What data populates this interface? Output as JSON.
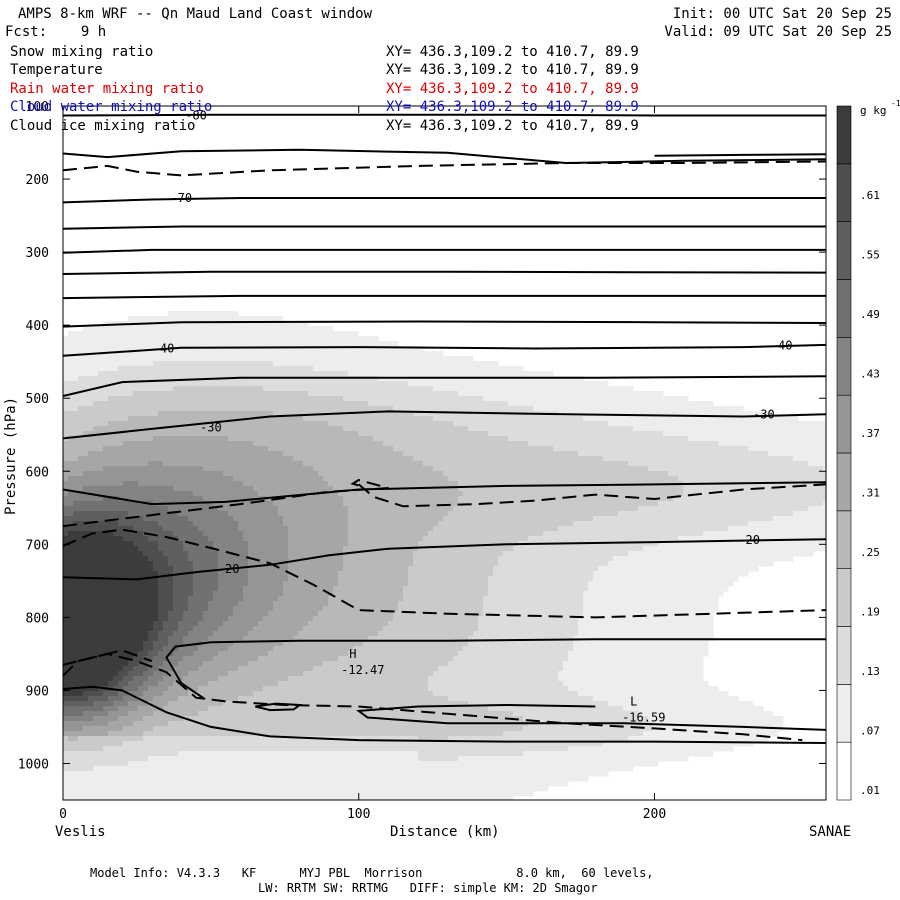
{
  "header": {
    "title": "AMPS 8-km WRF -- Qn Maud Land Coast window",
    "init": "Init: 00 UTC Sat 20 Sep 25",
    "fcst": "Fcst:    9 h",
    "valid": "Valid: 09 UTC Sat 20 Sep 25"
  },
  "fields": [
    {
      "label": "Snow mixing ratio",
      "xy": "XY= 436.3,109.2 to 410.7, 89.9",
      "color": "#000000"
    },
    {
      "label": "Temperature",
      "xy": "XY= 436.3,109.2 to 410.7, 89.9",
      "color": "#000000"
    },
    {
      "label": "Rain water mixing ratio",
      "xy": "XY= 436.3,109.2 to 410.7, 89.9",
      "color": "#e00000"
    },
    {
      "label": "Cloud water mixing ratio",
      "xy": "XY= 436.3,109.2 to 410.7, 89.9",
      "color": "#1010c0"
    },
    {
      "label": "Cloud ice mixing ratio",
      "xy": "XY= 436.3,109.2 to 410.7, 89.9",
      "color": "#000000"
    }
  ],
  "footer": {
    "line1": "Model Info: V4.3.3   KF      MYJ PBL  Morrison             8.0 km,  60 levels,",
    "line2": "LW: RRTM SW: RRTMG   DIFF: simple KM: 2D Smagor"
  },
  "chart_data": {
    "type": "cross-section contour",
    "ylabel": "Pressure (hPa)",
    "xlabel": "Distance (km)",
    "x_start_label": "Veslis",
    "x_end_label": "SANAE",
    "xlim": [
      0,
      258
    ],
    "ylim": [
      1050,
      100
    ],
    "x_ticks": [
      0,
      100,
      200
    ],
    "y_ticks": [
      100,
      200,
      300,
      400,
      500,
      600,
      700,
      800,
      900,
      1000
    ],
    "colorbar": {
      "units": "g kg",
      "units_exp": "-1",
      "levels": [
        0,
        0.04,
        0.1,
        0.16,
        0.22,
        0.28,
        0.34,
        0.4,
        0.46,
        0.52,
        0.58,
        0.64,
        0.7
      ],
      "labels": [
        ".01",
        ".07",
        ".13",
        ".19",
        ".25",
        ".31",
        ".37",
        ".43",
        ".49",
        ".55",
        ".61"
      ],
      "label_values": [
        0.01,
        0.07,
        0.13,
        0.19,
        0.25,
        0.31,
        0.37,
        0.43,
        0.49,
        0.55,
        0.61
      ]
    },
    "snow_field": [
      {
        "x": 0,
        "p": 820,
        "v": 0.68,
        "rx": 25,
        "rp": 120
      },
      {
        "x": 12,
        "p": 760,
        "v": 0.35,
        "rx": 45,
        "rp": 160
      },
      {
        "x": 45,
        "p": 680,
        "v": 0.22,
        "rx": 70,
        "rp": 220
      },
      {
        "x": 110,
        "p": 800,
        "v": 0.15,
        "rx": 95,
        "rp": 230
      },
      {
        "x": 200,
        "p": 620,
        "v": 0.13,
        "rx": 110,
        "rp": 80
      },
      {
        "x": 150,
        "p": 950,
        "v": 0.08,
        "rx": 90,
        "rp": 40
      },
      {
        "x": 100,
        "p": 530,
        "v": 0.07,
        "rx": 100,
        "rp": 70
      }
    ],
    "temperature_contours": [
      {
        "level": -80,
        "points": [
          [
            0,
            113
          ],
          [
            50,
            112
          ],
          [
            100,
            112
          ],
          [
            150,
            112
          ],
          [
            200,
            113
          ],
          [
            258,
            113
          ]
        ]
      },
      {
        "level": -75,
        "points": [
          [
            0,
            165
          ],
          [
            15,
            170
          ],
          [
            40,
            162
          ],
          [
            80,
            160
          ],
          [
            130,
            164
          ],
          [
            170,
            178
          ],
          [
            210,
            175
          ],
          [
            258,
            173
          ]
        ]
      },
      {
        "level": -75,
        "points": [
          [
            200,
            168
          ],
          [
            230,
            167
          ],
          [
            258,
            166
          ]
        ]
      },
      {
        "level": -70,
        "points": [
          [
            0,
            232
          ],
          [
            30,
            228
          ],
          [
            60,
            226
          ],
          [
            100,
            226
          ],
          [
            150,
            226
          ],
          [
            200,
            226
          ],
          [
            258,
            226
          ]
        ]
      },
      {
        "level": -65,
        "points": [
          [
            0,
            268
          ],
          [
            40,
            265
          ],
          [
            100,
            265
          ],
          [
            170,
            265
          ],
          [
            258,
            265
          ]
        ]
      },
      {
        "level": -60,
        "points": [
          [
            0,
            301
          ],
          [
            30,
            297
          ],
          [
            100,
            297
          ],
          [
            180,
            297
          ],
          [
            258,
            297
          ]
        ]
      },
      {
        "level": -55,
        "points": [
          [
            0,
            330
          ],
          [
            50,
            327
          ],
          [
            130,
            327
          ],
          [
            258,
            328
          ]
        ]
      },
      {
        "level": -50,
        "points": [
          [
            0,
            363
          ],
          [
            60,
            360
          ],
          [
            150,
            360
          ],
          [
            258,
            360
          ]
        ]
      },
      {
        "level": -45,
        "points": [
          [
            0,
            402
          ],
          [
            40,
            396
          ],
          [
            120,
            395
          ],
          [
            200,
            396
          ],
          [
            258,
            397
          ]
        ]
      },
      {
        "level": -40,
        "points": [
          [
            0,
            442
          ],
          [
            40,
            431
          ],
          [
            100,
            430
          ],
          [
            160,
            432
          ],
          [
            230,
            430
          ],
          [
            258,
            427
          ]
        ]
      },
      {
        "level": -35,
        "points": [
          [
            0,
            497
          ],
          [
            20,
            478
          ],
          [
            60,
            472
          ],
          [
            110,
            472
          ],
          [
            180,
            472
          ],
          [
            258,
            470
          ]
        ]
      },
      {
        "level": -30,
        "points": [
          [
            0,
            555
          ],
          [
            30,
            542
          ],
          [
            70,
            525
          ],
          [
            110,
            518
          ],
          [
            170,
            522
          ],
          [
            230,
            525
          ],
          [
            258,
            522
          ]
        ]
      },
      {
        "level": -25,
        "points": [
          [
            0,
            625
          ],
          [
            30,
            645
          ],
          [
            55,
            642
          ],
          [
            100,
            625
          ],
          [
            150,
            620
          ],
          [
            200,
            618
          ],
          [
            258,
            615
          ]
        ]
      },
      {
        "level": -20,
        "points": [
          [
            0,
            745
          ],
          [
            25,
            748
          ],
          [
            45,
            738
          ],
          [
            70,
            728
          ],
          [
            90,
            715
          ],
          [
            110,
            706
          ],
          [
            150,
            700
          ],
          [
            200,
            697
          ],
          [
            258,
            693
          ]
        ]
      },
      {
        "level": -15,
        "points": [
          [
            0,
            898
          ],
          [
            10,
            895
          ],
          [
            20,
            900
          ],
          [
            35,
            930
          ],
          [
            50,
            950
          ],
          [
            70,
            963
          ],
          [
            100,
            968
          ],
          [
            150,
            970
          ],
          [
            200,
            970
          ],
          [
            258,
            972
          ]
        ]
      },
      {
        "level": -15,
        "points": [
          [
            48,
            912
          ],
          [
            40,
            890
          ],
          [
            35,
            855
          ],
          [
            38,
            840
          ],
          [
            50,
            834
          ],
          [
            80,
            832
          ],
          [
            130,
            832
          ],
          [
            180,
            830
          ],
          [
            258,
            830
          ]
        ]
      },
      {
        "level": -16,
        "points": [
          [
            180,
            922
          ],
          [
            150,
            920
          ],
          [
            120,
            922
          ],
          [
            100,
            928
          ],
          [
            103,
            937
          ],
          [
            130,
            945
          ],
          [
            190,
            945
          ],
          [
            230,
            950
          ],
          [
            258,
            954
          ]
        ]
      },
      {
        "level": -13,
        "points": [
          [
            65,
            922
          ],
          [
            72,
            918
          ],
          [
            80,
            920
          ],
          [
            78,
            926
          ],
          [
            70,
            927
          ],
          [
            65,
            922
          ]
        ]
      }
    ],
    "ice_contours": [
      {
        "points": [
          [
            0,
            188
          ],
          [
            15,
            182
          ],
          [
            25,
            190
          ],
          [
            40,
            195
          ],
          [
            70,
            188
          ],
          [
            120,
            182
          ],
          [
            170,
            178
          ],
          [
            210,
            178
          ],
          [
            258,
            176
          ]
        ]
      },
      {
        "points": [
          [
            0,
            675
          ],
          [
            10,
            670
          ],
          [
            30,
            660
          ],
          [
            60,
            645
          ],
          [
            90,
            628
          ],
          [
            110,
            623
          ],
          [
            100,
            612
          ],
          [
            98,
            617
          ],
          [
            102,
            622
          ]
        ]
      },
      {
        "points": [
          [
            100,
            618
          ],
          [
            105,
            635
          ],
          [
            115,
            648
          ],
          [
            140,
            645
          ],
          [
            160,
            640
          ],
          [
            180,
            632
          ],
          [
            200,
            638
          ],
          [
            230,
            625
          ],
          [
            258,
            618
          ]
        ]
      },
      {
        "points": [
          [
            0,
            702
          ],
          [
            10,
            685
          ],
          [
            20,
            680
          ],
          [
            35,
            690
          ],
          [
            50,
            705
          ],
          [
            70,
            726
          ],
          [
            85,
            756
          ],
          [
            100,
            790
          ],
          [
            130,
            795
          ],
          [
            180,
            800
          ],
          [
            220,
            795
          ],
          [
            258,
            790
          ]
        ]
      },
      {
        "points": [
          [
            0,
            880
          ],
          [
            5,
            860
          ],
          [
            15,
            850
          ],
          [
            25,
            860
          ],
          [
            35,
            875
          ],
          [
            45,
            910
          ],
          [
            55,
            915
          ],
          [
            75,
            920
          ],
          [
            100,
            922
          ],
          [
            130,
            932
          ],
          [
            170,
            945
          ],
          [
            200,
            952
          ],
          [
            230,
            960
          ],
          [
            250,
            968
          ]
        ]
      },
      {
        "points": [
          [
            0,
            865
          ],
          [
            10,
            855
          ],
          [
            20,
            845
          ],
          [
            30,
            860
          ]
        ]
      }
    ],
    "contour_labels": [
      {
        "text": "-80",
        "x": 45,
        "p": 113
      },
      {
        "text": "-70",
        "x": 40,
        "p": 226
      },
      {
        "text": "-40",
        "x": 34,
        "p": 432
      },
      {
        "text": "-40",
        "x": 243,
        "p": 428
      },
      {
        "text": "-30",
        "x": 50,
        "p": 540
      },
      {
        "text": "-30",
        "x": 237,
        "p": 522
      },
      {
        "text": "-20",
        "x": 56,
        "p": 734
      },
      {
        "text": "-20",
        "x": 232,
        "p": 694
      }
    ],
    "extrema": [
      {
        "label": "H",
        "value": "-12.47",
        "x": 98,
        "p": 875
      },
      {
        "label": "L",
        "value": "-16.59",
        "x": 193,
        "p": 940
      }
    ]
  }
}
